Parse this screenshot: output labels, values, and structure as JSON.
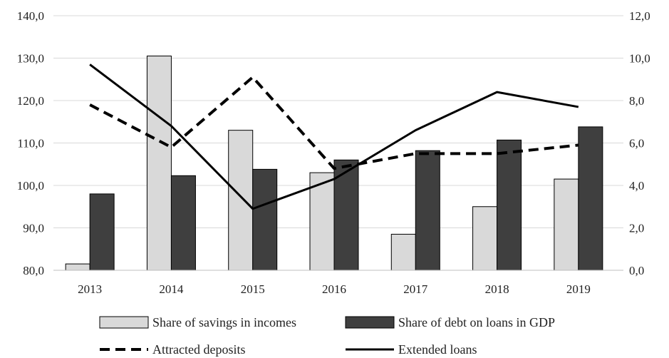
{
  "chart_data": {
    "type": "bar",
    "categories": [
      "2013",
      "2014",
      "2015",
      "2016",
      "2017",
      "2018",
      "2019"
    ],
    "bar_series": [
      {
        "name": "Share of savings in incomes",
        "axis": "left",
        "color": "#d9d9d9",
        "values": [
          81.5,
          130.5,
          113.0,
          103.0,
          88.5,
          95.0,
          101.5
        ]
      },
      {
        "name": "Share of debt on loans in GDP",
        "axis": "left",
        "color": "#3f3f3f",
        "values": [
          98.0,
          102.3,
          103.8,
          106.0,
          108.2,
          110.7,
          113.8
        ]
      }
    ],
    "line_series": [
      {
        "name": "Attracted deposits",
        "axis": "right",
        "style": "dashed",
        "color": "#000000",
        "values": [
          7.8,
          5.8,
          9.1,
          4.8,
          5.5,
          5.5,
          5.9
        ]
      },
      {
        "name": "Extended loans",
        "axis": "right",
        "style": "solid",
        "color": "#000000",
        "values": [
          9.7,
          6.8,
          2.9,
          4.3,
          6.6,
          8.4,
          7.7
        ]
      }
    ],
    "left_axis": {
      "ylim": [
        80,
        140
      ],
      "ticks": [
        "80,0",
        "90,0",
        "100,0",
        "110,0",
        "120,0",
        "130,0",
        "140,0"
      ]
    },
    "right_axis": {
      "ylim": [
        0,
        12
      ],
      "ticks": [
        "0,0",
        "2,0",
        "4,0",
        "6,0",
        "8,0",
        "10,0",
        "12,0"
      ]
    },
    "grid": true,
    "legend_position": "bottom"
  }
}
